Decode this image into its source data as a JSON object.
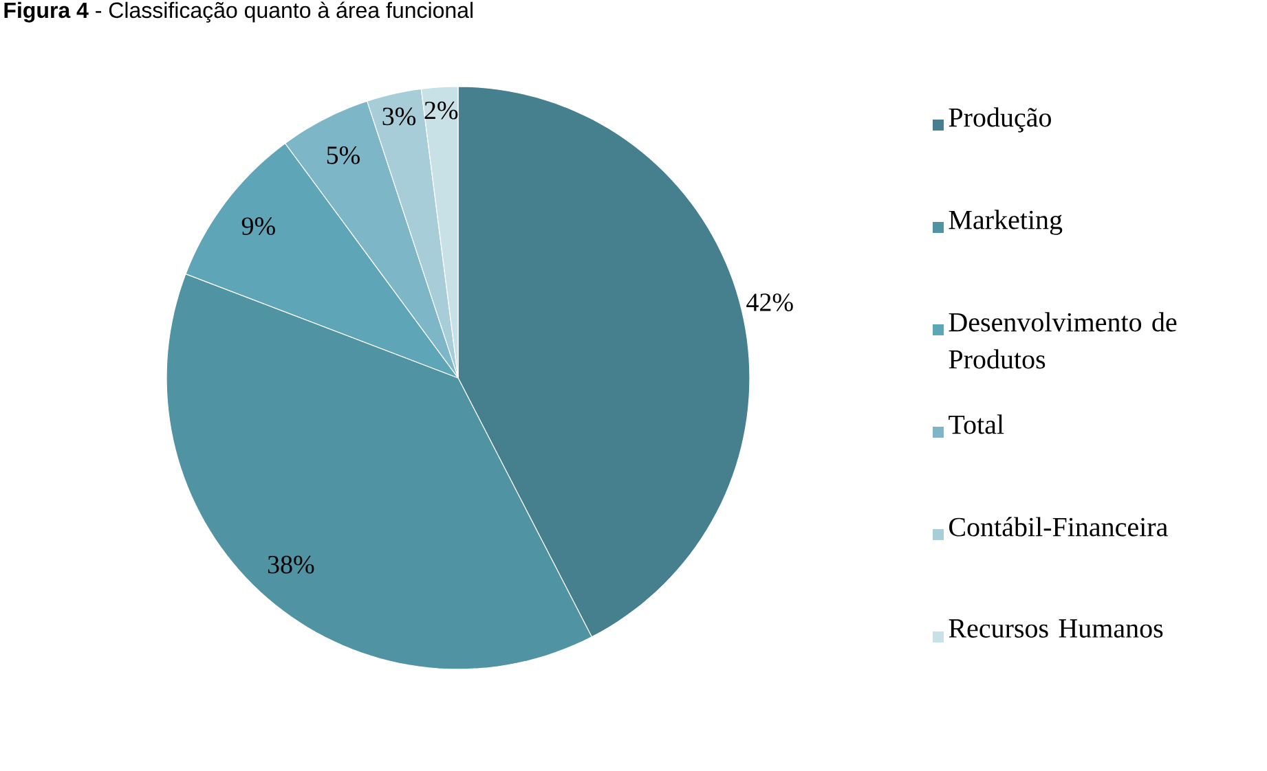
{
  "chart_data": {
    "type": "pie",
    "title": "**Figura 4** - Classificação quanto à área funcional",
    "categories": [
      "Produção",
      "Marketing",
      "Desenvolvimento de Produtos",
      "Total",
      "Contábil-Financeira",
      "Recursos Humanos"
    ],
    "values": [
      42,
      38,
      9,
      5,
      3,
      2
    ],
    "colors": [
      "#467f8d",
      "#5093a3",
      "#5ea5b7",
      "#7db7c7",
      "#a6cdd8",
      "#c8e1e7"
    ],
    "value_labels": [
      "42%",
      "38%",
      "9%",
      "5%",
      "3%",
      "2%"
    ],
    "legend": "right"
  }
}
